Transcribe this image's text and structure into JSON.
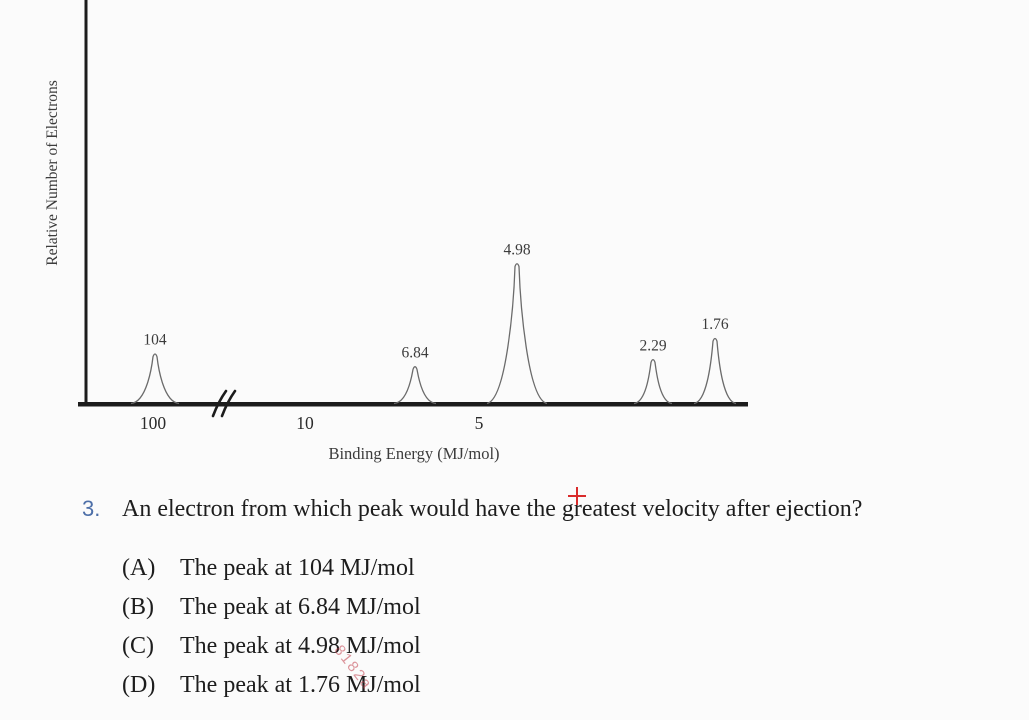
{
  "chart_data": {
    "type": "line",
    "title": "",
    "xlabel": "Binding Energy (MJ/mol)",
    "ylabel": "Relative Number of Electrons",
    "x_tick_labels": [
      "100",
      "10",
      "5"
    ],
    "x_axis_break_between": [
      "100",
      "10"
    ],
    "x_axis_direction": "binding energy decreases left to right",
    "grid": false,
    "legend": false,
    "peaks": [
      {
        "binding_energy": 104,
        "label": "104",
        "relative_height": 0.36
      },
      {
        "binding_energy": 6.84,
        "label": "6.84",
        "relative_height": 0.27
      },
      {
        "binding_energy": 4.98,
        "label": "4.98",
        "relative_height": 1.0
      },
      {
        "binding_energy": 2.29,
        "label": "2.29",
        "relative_height": 0.32
      },
      {
        "binding_energy": 1.76,
        "label": "1.76",
        "relative_height": 0.47
      }
    ]
  },
  "question": {
    "number": "3.",
    "text": "An electron from which peak would have the greatest velocity after ejection?",
    "options": [
      {
        "letter": "(A)",
        "text": "The peak at 104 MJ/mol"
      },
      {
        "letter": "(B)",
        "text": "The peak at 6.84 MJ/mol"
      },
      {
        "letter": "(C)",
        "text": "The peak at 4.98 MJ/mol"
      },
      {
        "letter": "(D)",
        "text": "The peak at 1.76 MJ/mol"
      }
    ]
  },
  "annotations": {
    "watermark_text": "8182a",
    "cursor": "red crosshair pointer"
  },
  "colors": {
    "background": "#fbfbfb",
    "axis": "#1c1c1c",
    "peak_outline": "#6b6b6b",
    "chart_text": "#3c3c3c",
    "body_text": "#1d1d1d",
    "question_number": "#4d6fa8",
    "cursor_red": "#d92b2b",
    "watermark_red": "#c13e4b"
  }
}
